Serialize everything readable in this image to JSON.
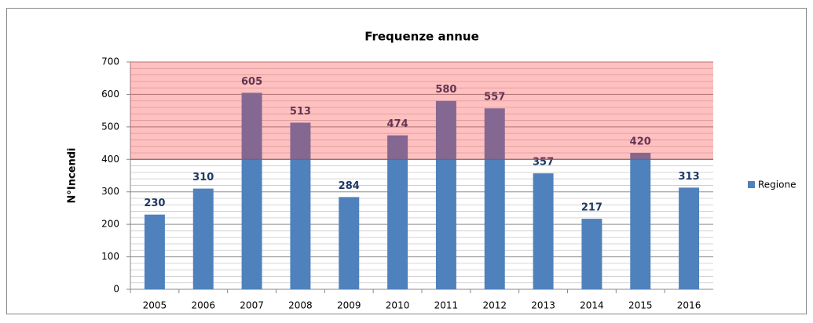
{
  "chart_data": {
    "type": "bar",
    "title": "Frequenze annue",
    "y_label": "N°Incendi",
    "categories": [
      "2005",
      "2006",
      "2007",
      "2008",
      "2009",
      "2010",
      "2011",
      "2012",
      "2013",
      "2014",
      "2015",
      "2016"
    ],
    "series": [
      {
        "name": "Regione",
        "color": "#4f81bd",
        "values": [
          230,
          310,
          605,
          513,
          284,
          474,
          580,
          557,
          357,
          217,
          420,
          313
        ]
      }
    ],
    "ylim": [
      0,
      700
    ],
    "yticks": [
      0,
      100,
      200,
      300,
      400,
      500,
      600,
      700
    ],
    "grid": true,
    "highlight_band": {
      "from": 400,
      "to": 700,
      "color": "#ff3030"
    },
    "legend": "right"
  }
}
